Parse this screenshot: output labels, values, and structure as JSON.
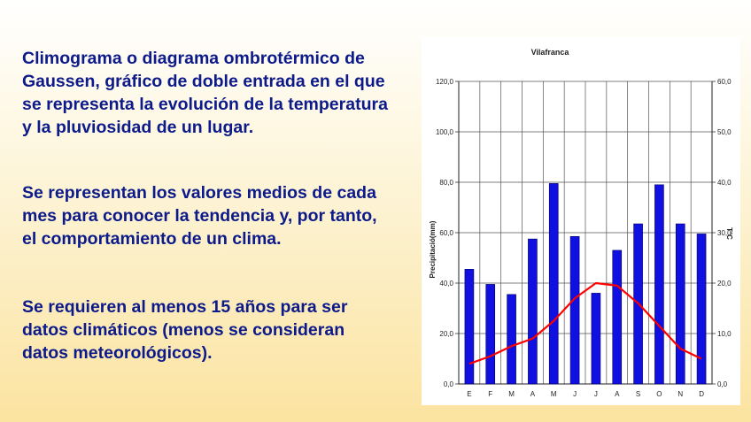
{
  "slide": {
    "paragraphs": [
      [
        "Climograma o diagrama ombrotérmico de",
        "Gaussen, gráfico de doble entrada en el que",
        "se representa la evolución de la temperatura",
        "y la pluviosidad de un lugar."
      ],
      [
        "Se representan los valores medios de cada",
        "mes para conocer la tendencia y, por tanto,",
        "el comportamiento de un clima."
      ],
      [
        "Se requieren al menos 15 años para ser",
        "datos climáticos (menos se consideran",
        "datos meteorológicos)."
      ]
    ],
    "text_color": "#0d1a8a"
  },
  "chart_data": {
    "type": "bar",
    "title": "Vilafranca",
    "categories": [
      "E",
      "F",
      "M",
      "A",
      "M",
      "J",
      "J",
      "A",
      "S",
      "O",
      "N",
      "D"
    ],
    "ylabel": "Precipitació(mm)",
    "y2label": "T°C",
    "ylim": [
      0,
      120
    ],
    "y2lim": [
      0,
      60
    ],
    "yticks": [
      "0,0",
      "20,0",
      "40,0",
      "60,0",
      "80,0",
      "100,0",
      "120,0"
    ],
    "y2ticks": [
      "0,0",
      "10,0",
      "20,0",
      "30,0",
      "40,0",
      "50,0",
      "60,0"
    ],
    "grid": true,
    "series": [
      {
        "type": "bar",
        "axis": "left",
        "color": "#1010e0",
        "values": [
          45.5,
          39.5,
          35.5,
          57.5,
          79.5,
          58.5,
          36,
          53,
          63.5,
          79,
          63.5,
          59.5
        ]
      },
      {
        "type": "line",
        "axis": "right",
        "color": "#ff0000",
        "values": [
          4,
          5.5,
          7.5,
          9,
          12.5,
          17,
          20,
          19.5,
          16,
          11.5,
          7,
          5
        ]
      }
    ]
  }
}
